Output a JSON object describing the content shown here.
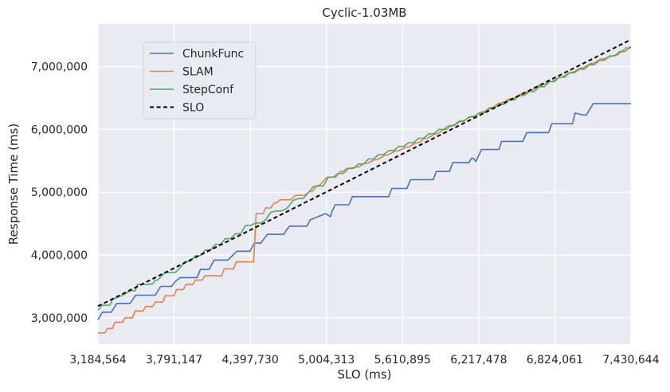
{
  "chart_data": {
    "type": "line",
    "title": "Cyclic-1.03MB",
    "xlabel": "SLO (ms)",
    "ylabel": "Response Time (ms)",
    "xlim": [
      3184564,
      7430644
    ],
    "ylim": [
      2580000,
      7680000
    ],
    "xticks": [
      3184564,
      3791147,
      4397730,
      5004313,
      5610895,
      6217478,
      6824061,
      7430644
    ],
    "xtick_labels": [
      "3,184,564",
      "3,791,147",
      "4,397,730",
      "5,004,313",
      "5,610,895",
      "6,217,478",
      "6,824,061",
      "7,430,644"
    ],
    "yticks": [
      3000000,
      4000000,
      5000000,
      6000000,
      7000000
    ],
    "ytick_labels": [
      "3,000,000",
      "4,000,000",
      "5,000,000",
      "6,000,000",
      "7,000,000"
    ],
    "grid": true,
    "legend_position": "upper-left",
    "background": "#eaeaf2",
    "series": [
      {
        "name": "ChunkFunc",
        "color": "#4c72b0",
        "style": "solid",
        "x": [
          3184564,
          3220000,
          3290000,
          3335000,
          3440000,
          3485000,
          3640000,
          3685000,
          3770000,
          3800000,
          3840000,
          3975000,
          4000000,
          4070000,
          4110000,
          4220000,
          4290000,
          4320000,
          4395000,
          4430000,
          4480000,
          4535000,
          4560000,
          4665000,
          4680000,
          4710000,
          4760000,
          4850000,
          4875000,
          5000000,
          5035000,
          5050000,
          5075000,
          5085000,
          5125000,
          5185000,
          5210000,
          5325000,
          5345000,
          5500000,
          5525000,
          5645000,
          5675000,
          5855000,
          5880000,
          5985000,
          6010000,
          6140000,
          6160000,
          6175000,
          6195000,
          6240000,
          6265000,
          6380000,
          6400000,
          6570000,
          6600000,
          6775000,
          6800000,
          6965000,
          6985000,
          7050000,
          7075000,
          7130000,
          7155000,
          7430644
        ],
        "y": [
          2970000,
          3090000,
          3090000,
          3230000,
          3230000,
          3360000,
          3360000,
          3500000,
          3500000,
          3580000,
          3640000,
          3640000,
          3770000,
          3770000,
          3920000,
          3920000,
          4060000,
          4060000,
          4060000,
          4190000,
          4190000,
          4330000,
          4330000,
          4330000,
          4380000,
          4460000,
          4460000,
          4460000,
          4560000,
          4660000,
          4610000,
          4700000,
          4800000,
          4800000,
          4800000,
          4800000,
          4930000,
          4930000,
          4930000,
          4930000,
          5060000,
          5060000,
          5200000,
          5200000,
          5330000,
          5330000,
          5470000,
          5470000,
          5540000,
          5540000,
          5490000,
          5680000,
          5680000,
          5680000,
          5810000,
          5810000,
          5950000,
          5950000,
          6090000,
          6090000,
          6260000,
          6230000,
          6230000,
          6410000,
          6410000,
          6410000
        ]
      },
      {
        "name": "SLAM",
        "color": "#dd8452",
        "style": "solid",
        "x": [
          3184564,
          3240000,
          3260000,
          3300000,
          3320000,
          3380000,
          3400000,
          3460000,
          3480000,
          3545000,
          3565000,
          3620000,
          3640000,
          3700000,
          3720000,
          3790000,
          3810000,
          3865000,
          3885000,
          3940000,
          3960000,
          4015000,
          4035000,
          4085000,
          4105000,
          4170000,
          4190000,
          4265000,
          4285000,
          4350000,
          4370000,
          4425000,
          4445000,
          4500000,
          4520000,
          4560000,
          4590000,
          4610000,
          4635000,
          4660000,
          4700000,
          4720000,
          4760000,
          4780000,
          4810000,
          4830000,
          4870000,
          4890000,
          4930000,
          4950000,
          5010000,
          5030000,
          5060000,
          5080000,
          5115000,
          5135000,
          5170000,
          5190000,
          5240000,
          5260000,
          5310000,
          5330000,
          5390000,
          5410000,
          5470000,
          5490000,
          5560000,
          5580000,
          5640000,
          5660000,
          5720000,
          5740000,
          5790000,
          5810000,
          5870000,
          5890000,
          5940000,
          5960000,
          6010000,
          6030000,
          6080000,
          6100000,
          6160000,
          6180000,
          6240000,
          6260000,
          6310000,
          6330000,
          6380000,
          6400000,
          6470000,
          6490000,
          6550000,
          6570000,
          6630000,
          6650000,
          6700000,
          6720000,
          6780000,
          6800000,
          6860000,
          6880000,
          6950000,
          6970000,
          7030000,
          7050000,
          7110000,
          7130000,
          7190000,
          7210000,
          7300000,
          7320000,
          7390000,
          7410000,
          7430644
        ],
        "y": [
          2760000,
          2760000,
          2830000,
          2830000,
          2930000,
          2930000,
          3000000,
          3000000,
          3110000,
          3110000,
          3180000,
          3180000,
          3250000,
          3250000,
          3350000,
          3350000,
          3450000,
          3450000,
          3530000,
          3530000,
          3600000,
          3600000,
          3670000,
          3670000,
          3670000,
          3670000,
          3780000,
          3780000,
          3890000,
          3890000,
          3890000,
          3890000,
          4660000,
          4660000,
          4750000,
          4750000,
          4830000,
          4830000,
          4880000,
          4880000,
          4880000,
          4880000,
          4950000,
          4950000,
          4950000,
          4950000,
          5010000,
          5010000,
          5110000,
          5110000,
          5240000,
          5240000,
          5240000,
          5240000,
          5330000,
          5330000,
          5380000,
          5380000,
          5400000,
          5400000,
          5460000,
          5460000,
          5520000,
          5520000,
          5590000,
          5590000,
          5660000,
          5660000,
          5720000,
          5720000,
          5790000,
          5790000,
          5860000,
          5860000,
          5930000,
          5930000,
          6000000,
          6000000,
          6070000,
          6070000,
          6140000,
          6140000,
          6210000,
          6210000,
          6280000,
          6280000,
          6350000,
          6350000,
          6420000,
          6420000,
          6490000,
          6490000,
          6560000,
          6560000,
          6630000,
          6630000,
          6700000,
          6700000,
          6760000,
          6760000,
          6830000,
          6830000,
          6910000,
          6910000,
          6980000,
          6980000,
          7050000,
          7050000,
          7120000,
          7120000,
          7180000,
          7180000,
          7300000,
          7300000,
          7300000
        ]
      },
      {
        "name": "StepConf",
        "color": "#55a868",
        "style": "solid",
        "x": [
          3184564,
          3220000,
          3280000,
          3300000,
          3380000,
          3400000,
          3440000,
          3460000,
          3480000,
          3500000,
          3580000,
          3620000,
          3640000,
          3660000,
          3720000,
          3760000,
          3800000,
          3840000,
          3880000,
          3920000,
          3960000,
          4000000,
          4040000,
          4080000,
          4120000,
          4160000,
          4200000,
          4240000,
          4280000,
          4320000,
          4360000,
          4400000,
          4440000,
          4480000,
          4520000,
          4560000,
          4600000,
          4640000,
          4680000,
          4700000,
          4740000,
          4780000,
          4820000,
          4860000,
          4900000,
          4940000,
          4980000,
          5020000,
          5060000,
          5100000,
          5140000,
          5180000,
          5220000,
          5260000,
          5300000,
          5340000,
          5380000,
          5420000,
          5460000,
          5500000,
          5540000,
          5580000,
          5620000,
          5660000,
          5700000,
          5740000,
          5780000,
          5820000,
          5860000,
          5900000,
          5940000,
          5980000,
          6020000,
          6060000,
          6100000,
          6140000,
          6180000,
          6220000,
          6260000,
          6300000,
          6340000,
          6380000,
          6420000,
          6460000,
          6500000,
          6540000,
          6580000,
          6620000,
          6660000,
          6700000,
          6740000,
          6780000,
          6820000,
          6860000,
          6900000,
          6940000,
          6980000,
          7020000,
          7060000,
          7100000,
          7140000,
          7180000,
          7220000,
          7260000,
          7300000,
          7340000,
          7380000,
          7430644
        ],
        "y": [
          3120000,
          3200000,
          3200000,
          3290000,
          3360000,
          3380000,
          3430000,
          3430000,
          3430000,
          3530000,
          3530000,
          3540000,
          3600000,
          3600000,
          3720000,
          3720000,
          3720000,
          3800000,
          3900000,
          3900000,
          3990000,
          3990000,
          4080000,
          4080000,
          4170000,
          4170000,
          4260000,
          4260000,
          4340000,
          4340000,
          4470000,
          4470000,
          4510000,
          4510000,
          4560000,
          4680000,
          4700000,
          4700000,
          4730000,
          4770000,
          4870000,
          4900000,
          4900000,
          4990000,
          5090000,
          5100000,
          5100000,
          5240000,
          5240000,
          5300000,
          5300000,
          5380000,
          5380000,
          5450000,
          5450000,
          5530000,
          5530000,
          5600000,
          5600000,
          5660000,
          5660000,
          5730000,
          5730000,
          5790000,
          5790000,
          5860000,
          5860000,
          5930000,
          5930000,
          6000000,
          6000000,
          6060000,
          6060000,
          6130000,
          6130000,
          6200000,
          6200000,
          6260000,
          6260000,
          6330000,
          6330000,
          6400000,
          6400000,
          6470000,
          6470000,
          6540000,
          6540000,
          6600000,
          6600000,
          6680000,
          6680000,
          6760000,
          6760000,
          6830000,
          6830000,
          6900000,
          6900000,
          6960000,
          6960000,
          7030000,
          7030000,
          7100000,
          7100000,
          7170000,
          7170000,
          7240000,
          7240000,
          7320000
        ]
      },
      {
        "name": "SLO",
        "color": "#000000",
        "style": "dashed",
        "x": [
          3184564,
          7430644
        ],
        "y": [
          3184564,
          7430644
        ]
      }
    ]
  }
}
